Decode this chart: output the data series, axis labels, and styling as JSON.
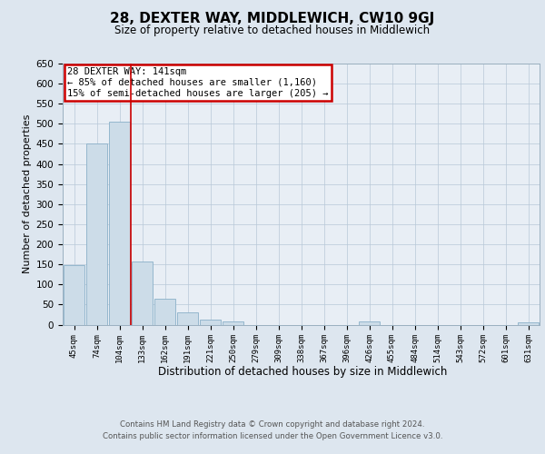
{
  "title": "28, DEXTER WAY, MIDDLEWICH, CW10 9GJ",
  "subtitle": "Size of property relative to detached houses in Middlewich",
  "xlabel": "Distribution of detached houses by size in Middlewich",
  "ylabel": "Number of detached properties",
  "bar_labels": [
    "45sqm",
    "74sqm",
    "104sqm",
    "133sqm",
    "162sqm",
    "191sqm",
    "221sqm",
    "250sqm",
    "279sqm",
    "309sqm",
    "338sqm",
    "367sqm",
    "396sqm",
    "426sqm",
    "455sqm",
    "484sqm",
    "514sqm",
    "543sqm",
    "572sqm",
    "601sqm",
    "631sqm"
  ],
  "bar_values": [
    147,
    450,
    505,
    157,
    65,
    30,
    13,
    7,
    0,
    0,
    0,
    0,
    0,
    7,
    0,
    0,
    0,
    0,
    0,
    0,
    5
  ],
  "bar_color": "#ccdce8",
  "bar_edge_color": "#8ab0c8",
  "highlight_line_color": "#cc0000",
  "annotation_text": "28 DEXTER WAY: 141sqm\n← 85% of detached houses are smaller (1,160)\n15% of semi-detached houses are larger (205) →",
  "annotation_box_color": "#cc0000",
  "ylim": [
    0,
    650
  ],
  "yticks": [
    0,
    50,
    100,
    150,
    200,
    250,
    300,
    350,
    400,
    450,
    500,
    550,
    600,
    650
  ],
  "footer_line1": "Contains HM Land Registry data © Crown copyright and database right 2024.",
  "footer_line2": "Contains public sector information licensed under the Open Government Licence v3.0.",
  "bg_color": "#dde6ef",
  "plot_bg_color": "#e8eef5"
}
